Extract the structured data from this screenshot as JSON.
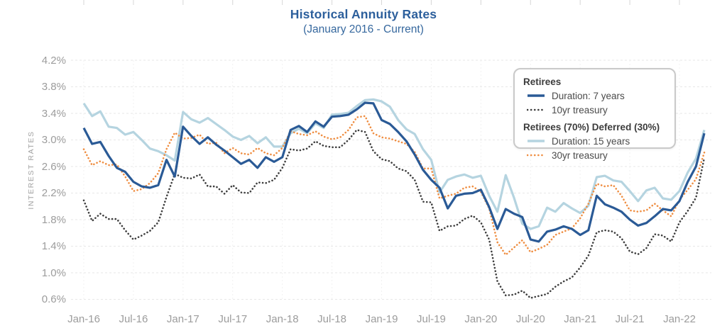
{
  "page": {
    "title": "Historical Annuity Rates",
    "subtitle": "(January 2016 - Current)"
  },
  "y_axis": {
    "title": "INTEREST RATES",
    "tick_labels": [
      "4.2%",
      "3.8%",
      "3.4%",
      "3.0%",
      "2.6%",
      "2.2%",
      "1.8%",
      "1.4%",
      "1.0%",
      "0.6%"
    ]
  },
  "x_axis": {
    "tick_labels": [
      "Jan-16",
      "Jul-16",
      "Jan-17",
      "Jul-17",
      "Jan-18",
      "Jul-18",
      "Jan-19",
      "Jul-19",
      "Jan-20",
      "Jul-20",
      "Jan-21",
      "Jul-21",
      "Jan-22"
    ]
  },
  "legend": {
    "groups": [
      {
        "heading": "Retirees",
        "items": [
          {
            "label": "Duration: 7 years",
            "series_index": 3
          },
          {
            "label": "10yr treasury",
            "series_index": 2
          }
        ]
      },
      {
        "heading": "Retirees (70%) Deferred (30%)",
        "items": [
          {
            "label": "Duration: 15 years",
            "series_index": 0
          },
          {
            "label": "30yr treasury",
            "series_index": 1
          }
        ]
      }
    ]
  },
  "colors": {
    "title": "#2c5f9c",
    "subtitle": "#36689e",
    "axis_text": "#9c9c9c",
    "y_axis_title_text": "#a2a2a2",
    "grid_horizontal": "#e7e7e7",
    "grid_vertical": "#f1f1f1",
    "top_ticks": "#d6d6d6",
    "duration_7yr": "#2a5a96",
    "duration_15yr": "#b5d4e0",
    "treasury_10yr": "#3e3e3e",
    "treasury_30yr": "#ef8e42",
    "legend_border": "#c9c9c9",
    "legend_heading_text": "#3c3c3c",
    "legend_item_text": "#4a4a4a"
  },
  "chart_data": {
    "type": "line",
    "title": "Historical Annuity Rates",
    "subtitle": "(January 2016 - Current)",
    "ylabel": "INTEREST RATES",
    "ylim": [
      0.6,
      4.2
    ],
    "y_tick_step": 0.4,
    "y_tick_format": "percent",
    "grid": true,
    "legend_position": "top-right",
    "x_start": "Jan-2016",
    "x_end": "Apr-2022",
    "x_interval": "monthly",
    "n_points": 76,
    "x_tick_labels": [
      "Jan-16",
      "Jul-16",
      "Jan-17",
      "Jul-17",
      "Jan-18",
      "Jul-18",
      "Jan-19",
      "Jul-19",
      "Jan-20",
      "Jul-20",
      "Jan-21",
      "Jul-21",
      "Jan-22"
    ],
    "x_tick_indices": [
      0,
      6,
      12,
      18,
      24,
      30,
      36,
      42,
      48,
      54,
      60,
      66,
      72
    ],
    "series": [
      {
        "name": "Duration: 15 years",
        "group": "Retirees (70%) Deferred (30%)",
        "style": "solid",
        "color": "#b5d4e0",
        "width": 3.2,
        "values": [
          3.55,
          3.36,
          3.43,
          3.2,
          3.18,
          3.08,
          3.12,
          3.0,
          2.87,
          2.83,
          2.77,
          2.69,
          3.42,
          3.31,
          3.26,
          3.33,
          3.24,
          3.15,
          3.05,
          3.0,
          3.06,
          2.95,
          3.04,
          2.9,
          2.9,
          3.1,
          3.17,
          3.1,
          3.25,
          3.18,
          3.38,
          3.39,
          3.41,
          3.51,
          3.6,
          3.61,
          3.58,
          3.5,
          3.3,
          3.16,
          3.09,
          2.86,
          2.7,
          2.21,
          2.4,
          2.45,
          2.48,
          2.43,
          2.46,
          2.16,
          1.92,
          2.47,
          2.13,
          1.74,
          1.66,
          1.7,
          1.98,
          1.92,
          2.05,
          1.97,
          1.9,
          2.01,
          2.44,
          2.46,
          2.39,
          2.37,
          2.23,
          2.08,
          2.24,
          2.28,
          2.12,
          2.1,
          2.23,
          2.51,
          2.72,
          3.15
        ]
      },
      {
        "name": "30yr treasury",
        "group": "Retirees (70%) Deferred (30%)",
        "style": "dotted",
        "color": "#ef8e42",
        "width": 2.6,
        "values": [
          2.86,
          2.62,
          2.68,
          2.62,
          2.63,
          2.45,
          2.23,
          2.26,
          2.35,
          2.5,
          2.86,
          3.11,
          3.02,
          3.03,
          3.08,
          2.94,
          2.96,
          2.8,
          2.88,
          2.8,
          2.78,
          2.88,
          2.8,
          2.77,
          2.88,
          3.13,
          3.09,
          3.07,
          3.13,
          3.05,
          3.01,
          3.04,
          3.15,
          3.34,
          3.36,
          3.1,
          3.04,
          3.02,
          2.98,
          2.94,
          2.82,
          2.57,
          2.57,
          2.12,
          2.16,
          2.19,
          2.28,
          2.3,
          2.22,
          1.97,
          1.46,
          1.27,
          1.38,
          1.49,
          1.31,
          1.36,
          1.42,
          1.57,
          1.62,
          1.67,
          1.82,
          2.04,
          2.34,
          2.3,
          2.32,
          2.16,
          1.94,
          1.92,
          1.94,
          2.04,
          1.94,
          1.85,
          2.1,
          2.25,
          2.41,
          2.81
        ]
      },
      {
        "name": "10yr treasury",
        "group": "Retirees",
        "style": "dotted",
        "color": "#3e3e3e",
        "width": 2.6,
        "values": [
          2.09,
          1.78,
          1.89,
          1.81,
          1.81,
          1.64,
          1.5,
          1.56,
          1.63,
          1.76,
          2.14,
          2.49,
          2.43,
          2.42,
          2.48,
          2.3,
          2.3,
          2.19,
          2.32,
          2.21,
          2.2,
          2.36,
          2.35,
          2.4,
          2.58,
          2.86,
          2.84,
          2.87,
          2.98,
          2.91,
          2.89,
          2.89,
          3.0,
          3.15,
          3.12,
          2.83,
          2.71,
          2.68,
          2.57,
          2.53,
          2.4,
          2.07,
          2.06,
          1.63,
          1.7,
          1.71,
          1.81,
          1.86,
          1.76,
          1.5,
          0.87,
          0.66,
          0.67,
          0.73,
          0.62,
          0.65,
          0.68,
          0.79,
          0.87,
          0.93,
          1.08,
          1.26,
          1.61,
          1.64,
          1.62,
          1.52,
          1.32,
          1.28,
          1.37,
          1.58,
          1.56,
          1.47,
          1.76,
          1.93,
          2.13,
          2.73
        ]
      },
      {
        "name": "Duration: 7 years",
        "group": "Retirees",
        "style": "solid",
        "color": "#2a5a96",
        "width": 3.2,
        "values": [
          3.18,
          2.94,
          2.97,
          2.76,
          2.58,
          2.52,
          2.37,
          2.3,
          2.28,
          2.32,
          2.7,
          2.45,
          3.2,
          3.06,
          2.94,
          3.04,
          2.93,
          2.84,
          2.74,
          2.64,
          2.7,
          2.58,
          2.74,
          2.67,
          2.74,
          3.15,
          3.21,
          3.12,
          3.28,
          3.2,
          3.35,
          3.36,
          3.38,
          3.46,
          3.56,
          3.55,
          3.3,
          3.24,
          3.12,
          2.98,
          2.78,
          2.55,
          2.4,
          2.28,
          1.97,
          2.16,
          2.19,
          2.2,
          2.25,
          1.99,
          1.66,
          1.96,
          1.89,
          1.84,
          1.5,
          1.47,
          1.62,
          1.65,
          1.7,
          1.66,
          1.57,
          1.64,
          2.16,
          2.03,
          1.98,
          1.92,
          1.8,
          1.71,
          1.75,
          1.85,
          1.96,
          1.94,
          2.08,
          2.37,
          2.6,
          3.1
        ]
      }
    ]
  }
}
